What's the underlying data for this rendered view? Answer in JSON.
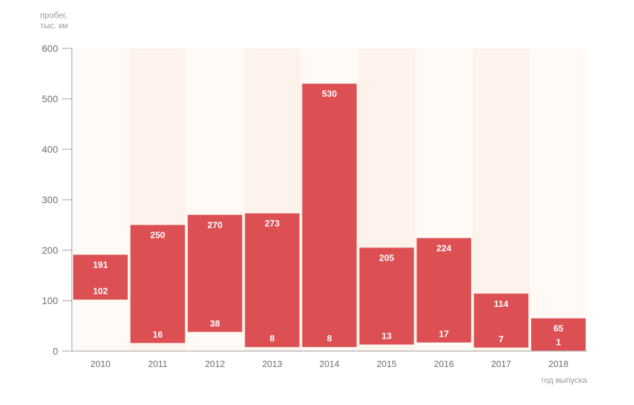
{
  "chart_data": {
    "type": "bar",
    "title": "",
    "ylabel_lines": [
      "пробег,",
      "тыс. км"
    ],
    "xlabel": "год выпуска",
    "ylim": [
      0,
      600
    ],
    "yticks": [
      0,
      100,
      200,
      300,
      400,
      500,
      600
    ],
    "categories": [
      "2010",
      "2011",
      "2012",
      "2013",
      "2014",
      "2015",
      "2016",
      "2017",
      "2018"
    ],
    "series": [
      {
        "name": "min",
        "values": [
          102,
          16,
          38,
          8,
          8,
          13,
          17,
          7,
          1
        ]
      },
      {
        "name": "max",
        "values": [
          191,
          250,
          270,
          273,
          530,
          205,
          224,
          114,
          65
        ]
      }
    ],
    "bar_color": "#dc5054",
    "column_band_colors": [
      "#fffaf5",
      "#fdf3ec"
    ],
    "grid": false
  }
}
